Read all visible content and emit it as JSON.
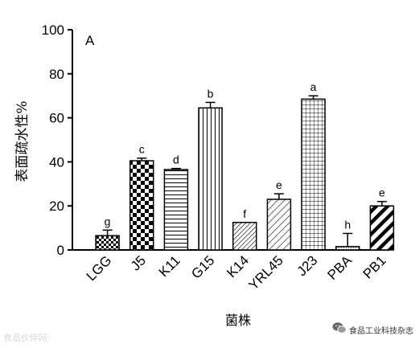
{
  "chart_data": {
    "type": "bar",
    "panel_label": "A",
    "ylabel": "表面疏水性%",
    "xlabel": "菌株",
    "ylim": [
      0,
      100
    ],
    "yticks": [
      0,
      20,
      40,
      60,
      80,
      100
    ],
    "grid": false,
    "categories": [
      "LGG",
      "J5",
      "K11",
      "G15",
      "K14",
      "YRL45",
      "J23",
      "PBA",
      "PB1"
    ],
    "values": [
      6.5,
      40.5,
      36.5,
      64.5,
      12.5,
      23,
      68.5,
      1.5,
      20
    ],
    "errors": [
      2.5,
      1.2,
      0.5,
      2.5,
      0,
      2.5,
      1.5,
      6,
      2
    ],
    "significance": [
      "g",
      "c",
      "d",
      "b",
      "f",
      "e",
      "a",
      "h",
      "e"
    ],
    "patterns": [
      "checker-small",
      "checker-large",
      "horizontal-lines",
      "vertical-lines",
      "diagonal-fine",
      "diagonal-medium",
      "grid",
      "dots",
      "diagonal-thick"
    ]
  },
  "watermarks": {
    "left": "食品伙伴网",
    "right": "食品工业科技杂志",
    "right_icon": "wechat-icon"
  }
}
